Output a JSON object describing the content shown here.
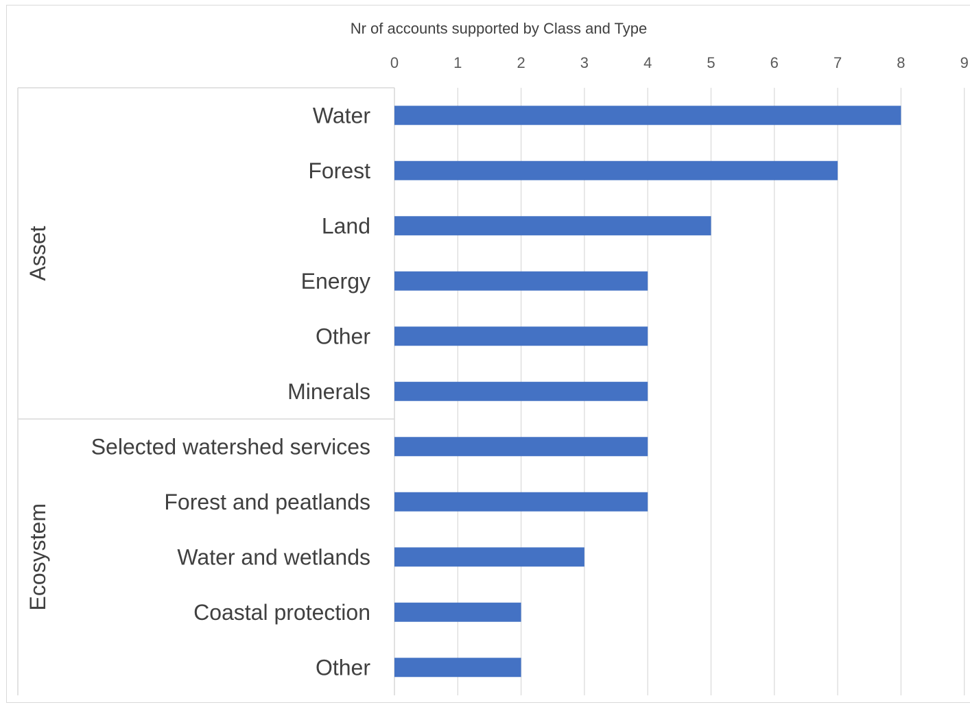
{
  "chart_data": {
    "type": "bar",
    "orientation": "horizontal",
    "title": "Nr of accounts supported by Class and Type",
    "xlabel": "",
    "ylabel": "",
    "xlim": [
      0,
      9
    ],
    "x_ticks": [
      0,
      1,
      2,
      3,
      4,
      5,
      6,
      7,
      8,
      9
    ],
    "grid": true,
    "groups": [
      {
        "label": "Asset",
        "categories": [
          "Water",
          "Forest",
          "Land",
          "Energy",
          "Other",
          "Minerals"
        ],
        "values": [
          8,
          7,
          5,
          4,
          4,
          4
        ]
      },
      {
        "label": "Ecosystem",
        "categories": [
          "Selected watershed services",
          "Forest and peatlands",
          "Water and wetlands",
          "Coastal protection",
          "Other"
        ],
        "values": [
          4,
          4,
          3,
          2,
          2
        ]
      }
    ],
    "colors": {
      "bar": "#4472C4",
      "grid": "#d9d9d9",
      "text": "#404040",
      "tick_text": "#595959"
    }
  }
}
